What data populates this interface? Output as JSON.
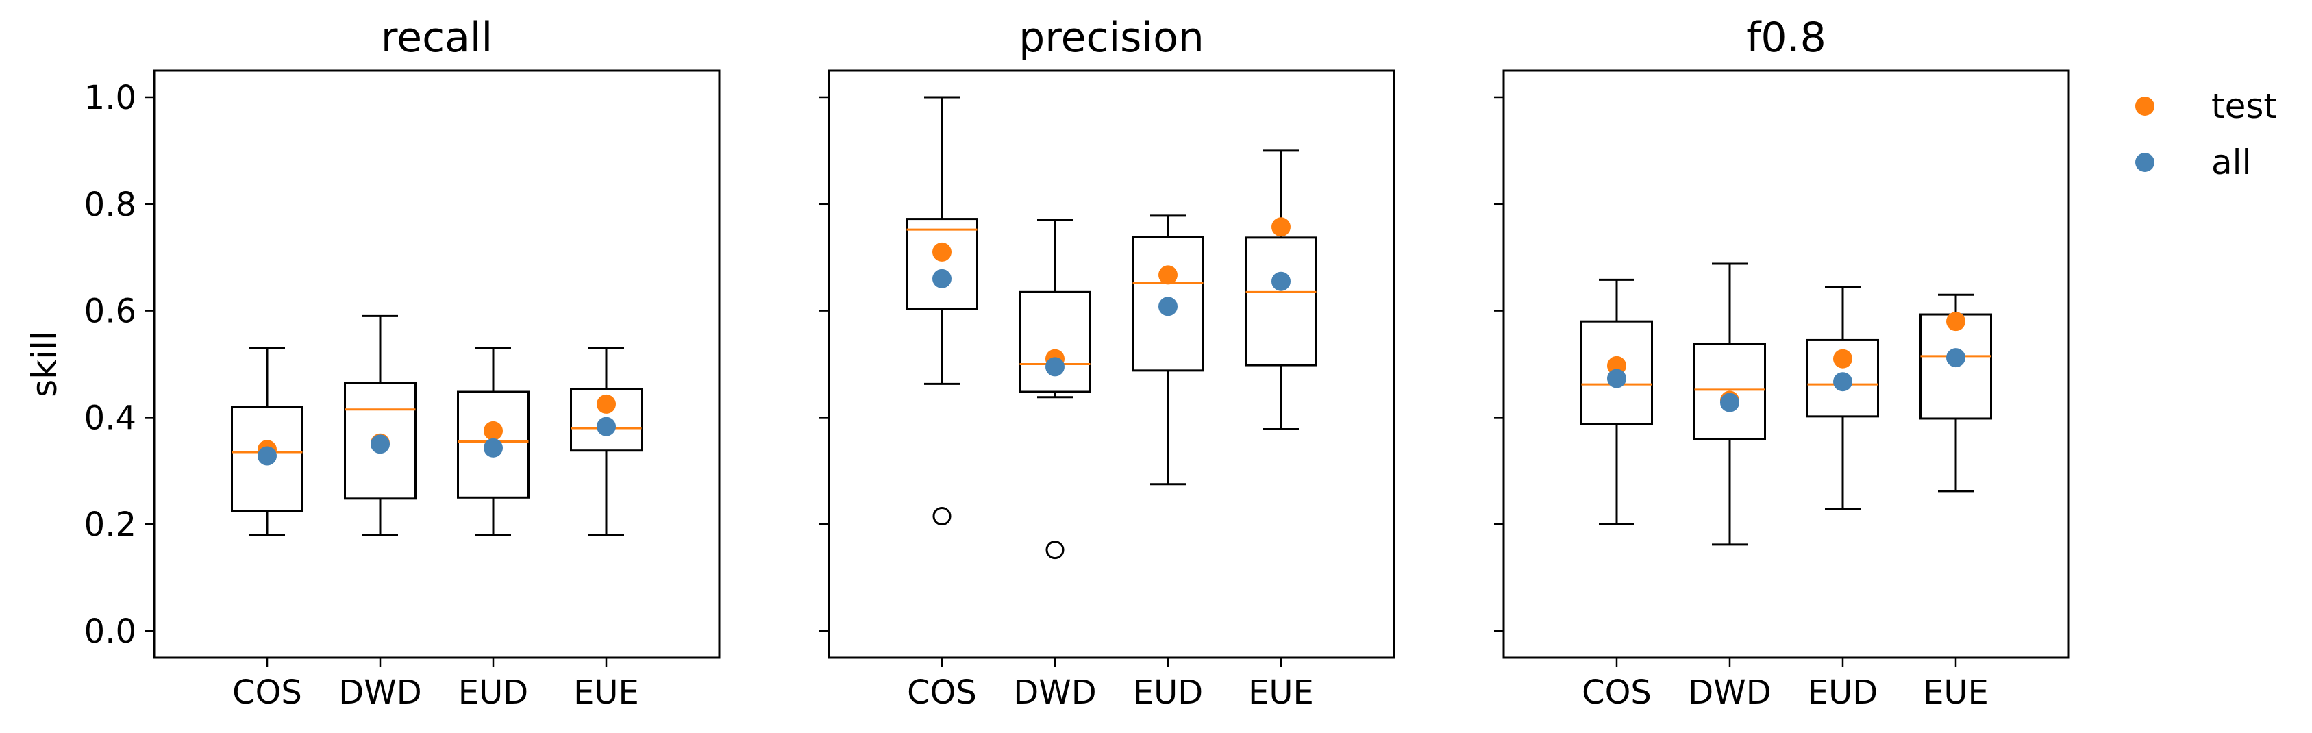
{
  "colors": {
    "test": "#ff7f0e",
    "all": "#4682b4",
    "median": "#ff7f0e",
    "box": "#000000"
  },
  "chart_data": {
    "type": "box",
    "ylabel": "skill",
    "ylim": [
      -0.05,
      1.05
    ],
    "yticks": [
      0.0,
      0.2,
      0.4,
      0.6,
      0.8,
      1.0
    ],
    "ytick_labels": [
      "0.0",
      "0.2",
      "0.4",
      "0.6",
      "0.8",
      "1.0"
    ],
    "categories": [
      "COS",
      "DWD",
      "EUD",
      "EUE"
    ],
    "legend": {
      "placement": "top-right outside",
      "entries": [
        {
          "label": "test",
          "color": "#ff7f0e"
        },
        {
          "label": "all",
          "color": "#4682b4"
        }
      ]
    },
    "panels": [
      {
        "title": "recall",
        "boxes": [
          {
            "category": "COS",
            "whisker_low": 0.18,
            "q1": 0.225,
            "median": 0.335,
            "q3": 0.42,
            "whisker_high": 0.53,
            "fliers": []
          },
          {
            "category": "DWD",
            "whisker_low": 0.18,
            "q1": 0.248,
            "median": 0.415,
            "q3": 0.465,
            "whisker_high": 0.59,
            "fliers": []
          },
          {
            "category": "EUD",
            "whisker_low": 0.18,
            "q1": 0.25,
            "median": 0.355,
            "q3": 0.448,
            "whisker_high": 0.53,
            "fliers": []
          },
          {
            "category": "EUE",
            "whisker_low": 0.18,
            "q1": 0.338,
            "median": 0.38,
            "q3": 0.453,
            "whisker_high": 0.53,
            "fliers": []
          }
        ],
        "series": [
          {
            "name": "test",
            "values": [
              0.34,
              0.352,
              0.375,
              0.425
            ]
          },
          {
            "name": "all",
            "values": [
              0.328,
              0.35,
              0.343,
              0.383
            ]
          }
        ]
      },
      {
        "title": "precision",
        "boxes": [
          {
            "category": "COS",
            "whisker_low": 0.463,
            "q1": 0.603,
            "median": 0.752,
            "q3": 0.772,
            "whisker_high": 1.0,
            "fliers": [
              0.215
            ]
          },
          {
            "category": "DWD",
            "whisker_low": 0.438,
            "q1": 0.448,
            "median": 0.5,
            "q3": 0.635,
            "whisker_high": 0.77,
            "fliers": [
              0.152
            ]
          },
          {
            "category": "EUD",
            "whisker_low": 0.275,
            "q1": 0.488,
            "median": 0.652,
            "q3": 0.738,
            "whisker_high": 0.778,
            "fliers": []
          },
          {
            "category": "EUE",
            "whisker_low": 0.378,
            "q1": 0.498,
            "median": 0.635,
            "q3": 0.737,
            "whisker_high": 0.9,
            "fliers": []
          }
        ],
        "series": [
          {
            "name": "test",
            "values": [
              0.71,
              0.51,
              0.667,
              0.757
            ]
          },
          {
            "name": "all",
            "values": [
              0.66,
              0.495,
              0.608,
              0.655
            ]
          }
        ]
      },
      {
        "title": "f0.8",
        "boxes": [
          {
            "category": "COS",
            "whisker_low": 0.2,
            "q1": 0.388,
            "median": 0.462,
            "q3": 0.58,
            "whisker_high": 0.658,
            "fliers": []
          },
          {
            "category": "DWD",
            "whisker_low": 0.162,
            "q1": 0.36,
            "median": 0.452,
            "q3": 0.538,
            "whisker_high": 0.688,
            "fliers": []
          },
          {
            "category": "EUD",
            "whisker_low": 0.228,
            "q1": 0.402,
            "median": 0.462,
            "q3": 0.545,
            "whisker_high": 0.645,
            "fliers": []
          },
          {
            "category": "EUE",
            "whisker_low": 0.262,
            "q1": 0.398,
            "median": 0.515,
            "q3": 0.593,
            "whisker_high": 0.63,
            "fliers": []
          }
        ],
        "series": [
          {
            "name": "test",
            "values": [
              0.497,
              0.432,
              0.51,
              0.58
            ]
          },
          {
            "name": "all",
            "values": [
              0.473,
              0.428,
              0.467,
              0.512
            ]
          }
        ]
      }
    ]
  }
}
